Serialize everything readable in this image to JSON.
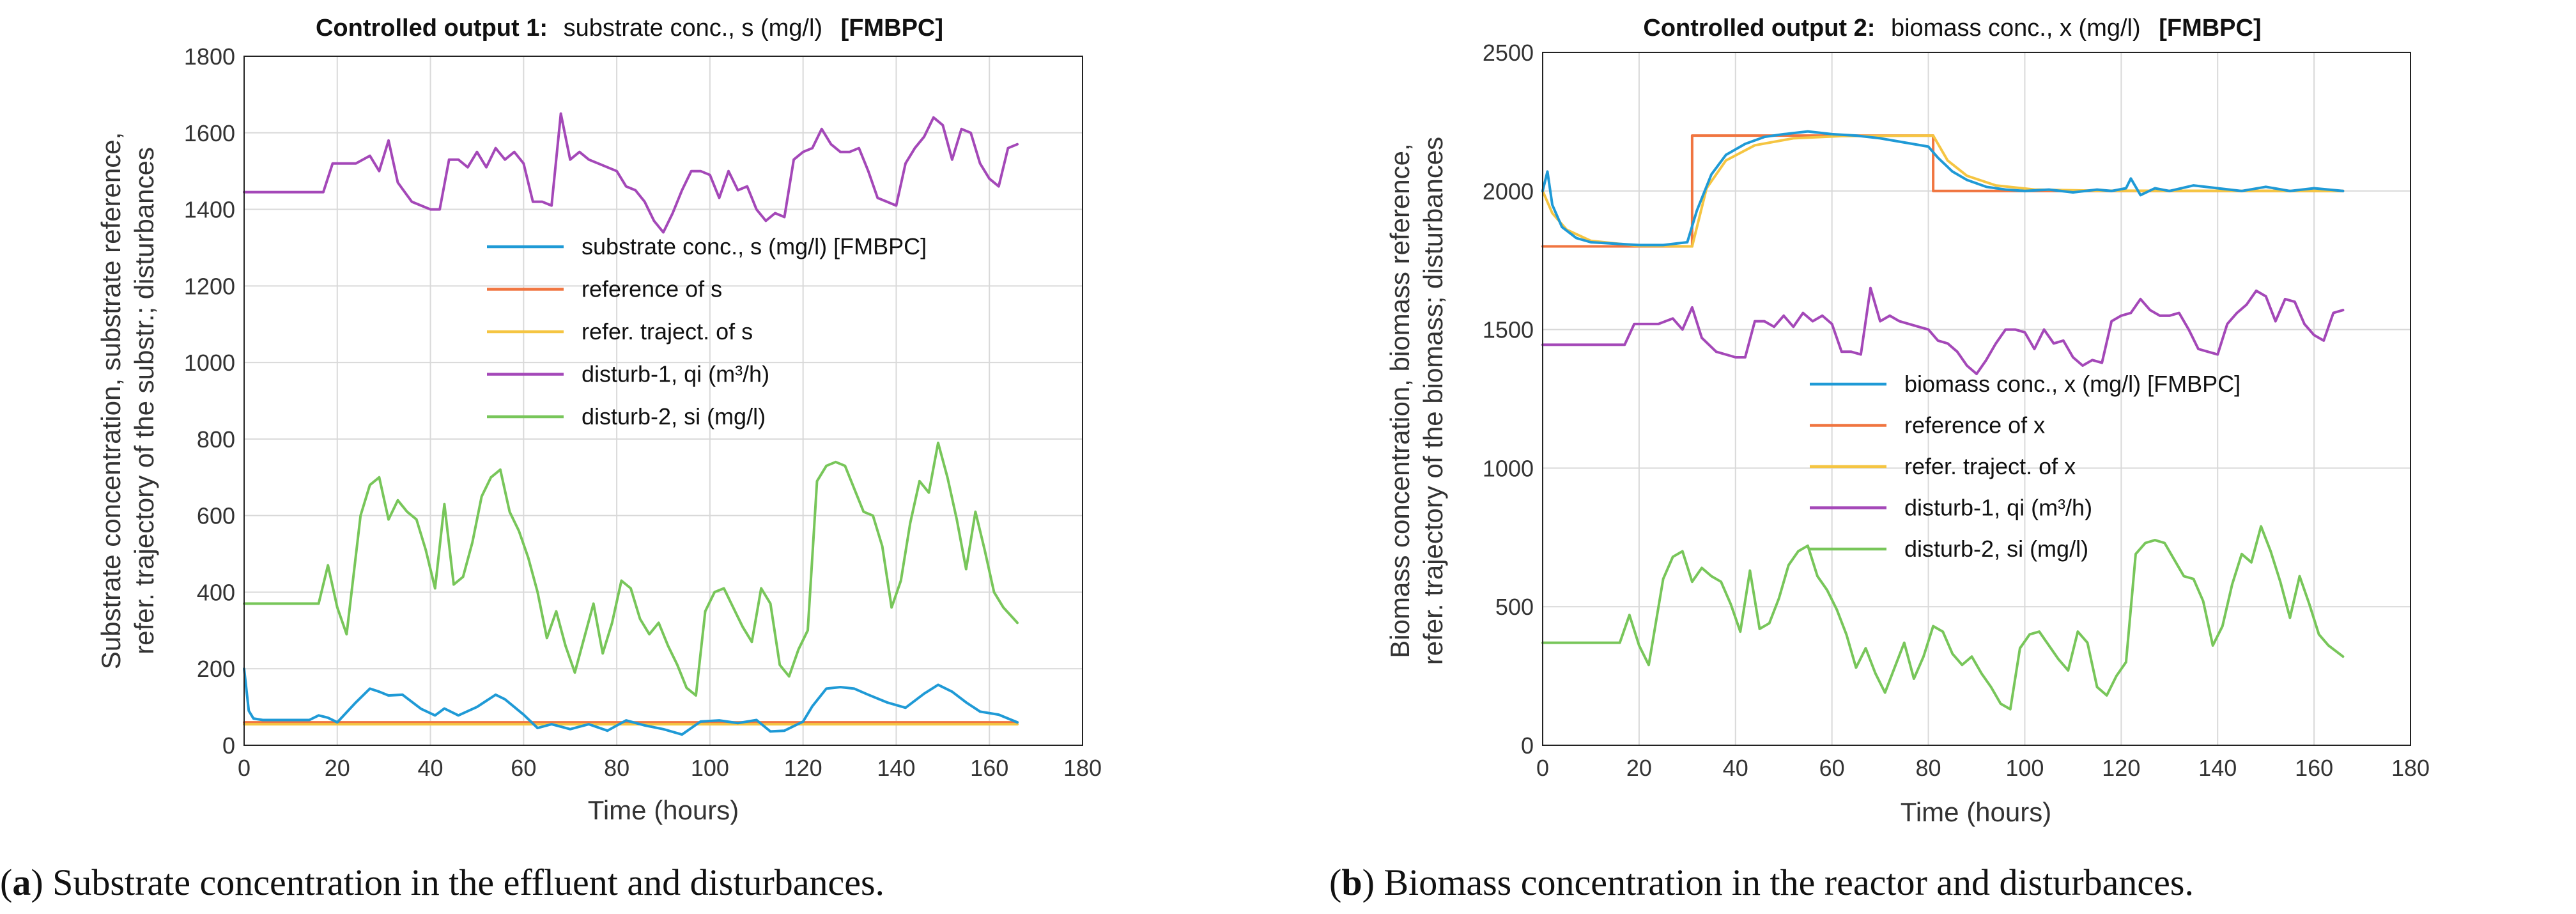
{
  "chart_data": [
    {
      "type": "line",
      "title_bold": "Controlled output 1:",
      "title_text": "substrate conc., s (mg/l)",
      "title_tag": "[FMBPC]",
      "xlabel": "Time (hours)",
      "ylabel_line1": "Substrate concentration, substrate reference,",
      "ylabel_line2": "refer. trajectory of the substr.; disturbances",
      "xlim": [
        0,
        180
      ],
      "ylim": [
        0,
        1800
      ],
      "xticks": [
        0,
        20,
        40,
        60,
        80,
        100,
        120,
        140,
        160,
        180
      ],
      "yticks": [
        0,
        200,
        400,
        600,
        800,
        1000,
        1200,
        1400,
        1600,
        1800
      ],
      "caption_letter": "a",
      "caption_text": ") Substrate concentration in the effluent and disturbances.",
      "series": [
        {
          "name": "substrate conc., s (mg/l) [FMBPC]",
          "color": "#1f9ad6",
          "x": [
            0,
            1,
            2,
            4,
            8,
            14,
            16,
            18,
            20,
            24,
            27,
            29,
            31,
            34,
            38,
            41,
            43,
            46,
            50,
            54,
            56,
            60,
            63,
            66,
            70,
            74,
            78,
            82,
            86,
            90,
            94,
            98,
            102,
            106,
            110,
            113,
            116,
            120,
            122,
            125,
            128,
            131,
            134,
            138,
            142,
            146,
            149,
            152,
            155,
            158,
            162,
            166
          ],
          "y": [
            200,
            90,
            70,
            66,
            66,
            66,
            78,
            72,
            60,
            112,
            148,
            140,
            130,
            132,
            95,
            78,
            96,
            78,
            100,
            132,
            120,
            80,
            45,
            55,
            42,
            55,
            38,
            65,
            52,
            42,
            28,
            62,
            65,
            58,
            66,
            36,
            38,
            62,
            102,
            148,
            152,
            148,
            132,
            112,
            98,
            135,
            158,
            140,
            112,
            88,
            80,
            60
          ]
        },
        {
          "name": "reference of s",
          "color": "#f07540",
          "x": [
            0,
            166
          ],
          "y": [
            60,
            60
          ]
        },
        {
          "name": "refer. traject. of s",
          "color": "#f5c542",
          "x": [
            0,
            166
          ],
          "y": [
            55,
            55
          ]
        },
        {
          "name": "disturb-1, qi (m³/h)",
          "color": "#a448b8",
          "x": [
            0,
            17,
            19,
            24,
            27,
            29,
            31,
            33,
            36,
            40,
            42,
            44,
            46,
            48,
            50,
            52,
            54,
            56,
            58,
            60,
            62,
            64,
            66,
            68,
            70,
            72,
            74,
            76,
            78,
            80,
            82,
            84,
            86,
            88,
            90,
            92,
            94,
            96,
            98,
            100,
            102,
            104,
            106,
            108,
            110,
            112,
            114,
            116,
            118,
            120,
            122,
            124,
            126,
            128,
            130,
            132,
            134,
            136,
            138,
            140,
            142,
            144,
            146,
            148,
            150,
            152,
            154,
            156,
            158,
            160,
            162,
            164,
            166
          ],
          "y": [
            1445,
            1445,
            1520,
            1520,
            1540,
            1500,
            1580,
            1470,
            1420,
            1400,
            1400,
            1530,
            1530,
            1510,
            1550,
            1510,
            1560,
            1530,
            1550,
            1520,
            1420,
            1420,
            1410,
            1650,
            1530,
            1550,
            1530,
            1520,
            1510,
            1500,
            1460,
            1450,
            1420,
            1370,
            1340,
            1390,
            1450,
            1500,
            1500,
            1490,
            1430,
            1500,
            1450,
            1460,
            1400,
            1370,
            1390,
            1380,
            1530,
            1550,
            1560,
            1610,
            1570,
            1550,
            1550,
            1560,
            1500,
            1430,
            1420,
            1410,
            1520,
            1560,
            1590,
            1640,
            1620,
            1530,
            1610,
            1600,
            1520,
            1480,
            1460,
            1560,
            1570
          ]
        },
        {
          "name": "disturb-2, si (mg/l)",
          "color": "#78c65a",
          "x": [
            0,
            16,
            18,
            20,
            22,
            25,
            27,
            29,
            31,
            33,
            35,
            37,
            39,
            41,
            43,
            45,
            47,
            49,
            51,
            53,
            55,
            57,
            59,
            61,
            63,
            65,
            67,
            69,
            71,
            73,
            75,
            77,
            79,
            81,
            83,
            85,
            87,
            89,
            91,
            93,
            95,
            97,
            99,
            101,
            103,
            105,
            107,
            109,
            111,
            113,
            115,
            117,
            119,
            121,
            123,
            125,
            127,
            129,
            131,
            133,
            135,
            137,
            139,
            141,
            143,
            145,
            147,
            149,
            151,
            153,
            155,
            157,
            159,
            161,
            163,
            166
          ],
          "y": [
            370,
            370,
            470,
            360,
            290,
            600,
            680,
            700,
            590,
            640,
            610,
            590,
            510,
            410,
            630,
            420,
            440,
            530,
            650,
            700,
            720,
            610,
            560,
            490,
            400,
            280,
            350,
            260,
            190,
            280,
            370,
            240,
            320,
            430,
            410,
            330,
            290,
            320,
            260,
            210,
            150,
            130,
            350,
            400,
            410,
            360,
            310,
            270,
            410,
            370,
            210,
            180,
            250,
            300,
            690,
            730,
            740,
            730,
            670,
            610,
            600,
            520,
            360,
            430,
            580,
            690,
            660,
            790,
            700,
            590,
            460,
            610,
            510,
            400,
            360,
            320
          ]
        }
      ]
    },
    {
      "type": "line",
      "title_bold": "Controlled output 2:",
      "title_text": "biomass conc., x (mg/l)",
      "title_tag": "[FMBPC]",
      "xlabel": "Time (hours)",
      "ylabel_line1": "Biomass concentration, biomass reference,",
      "ylabel_line2": "refer. trajectory of the biomass; disturbances",
      "xlim": [
        0,
        180
      ],
      "ylim": [
        0,
        2500
      ],
      "xticks": [
        0,
        20,
        40,
        60,
        80,
        100,
        120,
        140,
        160,
        180
      ],
      "yticks": [
        0,
        500,
        1000,
        1500,
        2000,
        2500
      ],
      "caption_letter": "b",
      "caption_text": ") Biomass concentration in the reactor and disturbances.",
      "series": [
        {
          "name": "biomass conc., x (mg/l) [FMBPC]",
          "color": "#1f9ad6",
          "x": [
            0,
            1,
            2,
            4,
            7,
            10,
            15,
            20,
            25,
            30,
            32,
            35,
            38,
            42,
            46,
            50,
            55,
            60,
            65,
            70,
            75,
            80,
            82,
            85,
            88,
            92,
            96,
            100,
            105,
            110,
            115,
            118,
            121,
            122,
            124,
            127,
            130,
            135,
            140,
            145,
            150,
            155,
            160,
            166
          ],
          "y": [
            2000,
            2070,
            1950,
            1870,
            1830,
            1815,
            1810,
            1805,
            1805,
            1815,
            1930,
            2060,
            2130,
            2170,
            2195,
            2205,
            2215,
            2205,
            2200,
            2190,
            2175,
            2160,
            2120,
            2070,
            2040,
            2015,
            2005,
            2000,
            2005,
            1995,
            2005,
            2000,
            2010,
            2045,
            1985,
            2010,
            2000,
            2020,
            2010,
            2000,
            2015,
            2000,
            2010,
            2000
          ]
        },
        {
          "name": "reference of x",
          "color": "#f07540",
          "x": [
            0,
            31,
            31,
            81,
            81,
            166
          ],
          "y": [
            1800,
            1800,
            2200,
            2200,
            2000,
            2000
          ]
        },
        {
          "name": "refer. traject. of x",
          "color": "#f5c542",
          "x": [
            0,
            2,
            5,
            10,
            20,
            31,
            34,
            38,
            44,
            52,
            62,
            81,
            84,
            88,
            94,
            102,
            115,
            166
          ],
          "y": [
            2000,
            1920,
            1860,
            1820,
            1802,
            1800,
            2010,
            2110,
            2165,
            2190,
            2198,
            2200,
            2110,
            2055,
            2020,
            2005,
            2001,
            2000
          ]
        },
        {
          "name": "disturb-1, qi (m³/h)",
          "color": "#a448b8",
          "x": [
            0,
            17,
            19,
            24,
            27,
            29,
            31,
            33,
            36,
            40,
            42,
            44,
            46,
            48,
            50,
            52,
            54,
            56,
            58,
            60,
            62,
            64,
            66,
            68,
            70,
            72,
            74,
            76,
            78,
            80,
            82,
            84,
            86,
            88,
            90,
            92,
            94,
            96,
            98,
            100,
            102,
            104,
            106,
            108,
            110,
            112,
            114,
            116,
            118,
            120,
            122,
            124,
            126,
            128,
            130,
            132,
            134,
            136,
            138,
            140,
            142,
            144,
            146,
            148,
            150,
            152,
            154,
            156,
            158,
            160,
            162,
            164,
            166
          ],
          "y": [
            1445,
            1445,
            1520,
            1520,
            1540,
            1500,
            1580,
            1470,
            1420,
            1400,
            1400,
            1530,
            1530,
            1510,
            1550,
            1510,
            1560,
            1530,
            1550,
            1520,
            1420,
            1420,
            1410,
            1650,
            1530,
            1550,
            1530,
            1520,
            1510,
            1500,
            1460,
            1450,
            1420,
            1370,
            1340,
            1390,
            1450,
            1500,
            1500,
            1490,
            1430,
            1500,
            1450,
            1460,
            1400,
            1370,
            1390,
            1380,
            1530,
            1550,
            1560,
            1610,
            1570,
            1550,
            1550,
            1560,
            1500,
            1430,
            1420,
            1410,
            1520,
            1560,
            1590,
            1640,
            1620,
            1530,
            1610,
            1600,
            1520,
            1480,
            1460,
            1560,
            1570
          ]
        },
        {
          "name": "disturb-2, si (mg/l)",
          "color": "#78c65a",
          "x": [
            0,
            16,
            18,
            20,
            22,
            25,
            27,
            29,
            31,
            33,
            35,
            37,
            39,
            41,
            43,
            45,
            47,
            49,
            51,
            53,
            55,
            57,
            59,
            61,
            63,
            65,
            67,
            69,
            71,
            73,
            75,
            77,
            79,
            81,
            83,
            85,
            87,
            89,
            91,
            93,
            95,
            97,
            99,
            101,
            103,
            105,
            107,
            109,
            111,
            113,
            115,
            117,
            119,
            121,
            123,
            125,
            127,
            129,
            131,
            133,
            135,
            137,
            139,
            141,
            143,
            145,
            147,
            149,
            151,
            153,
            155,
            157,
            159,
            161,
            163,
            166
          ],
          "y": [
            370,
            370,
            470,
            360,
            290,
            600,
            680,
            700,
            590,
            640,
            610,
            590,
            510,
            410,
            630,
            420,
            440,
            530,
            650,
            700,
            720,
            610,
            560,
            490,
            400,
            280,
            350,
            260,
            190,
            280,
            370,
            240,
            320,
            430,
            410,
            330,
            290,
            320,
            260,
            210,
            150,
            130,
            350,
            400,
            410,
            360,
            310,
            270,
            410,
            370,
            210,
            180,
            250,
            300,
            690,
            730,
            740,
            730,
            670,
            610,
            600,
            520,
            360,
            430,
            580,
            690,
            660,
            790,
            700,
            590,
            460,
            610,
            510,
            400,
            360,
            320
          ]
        }
      ]
    }
  ]
}
